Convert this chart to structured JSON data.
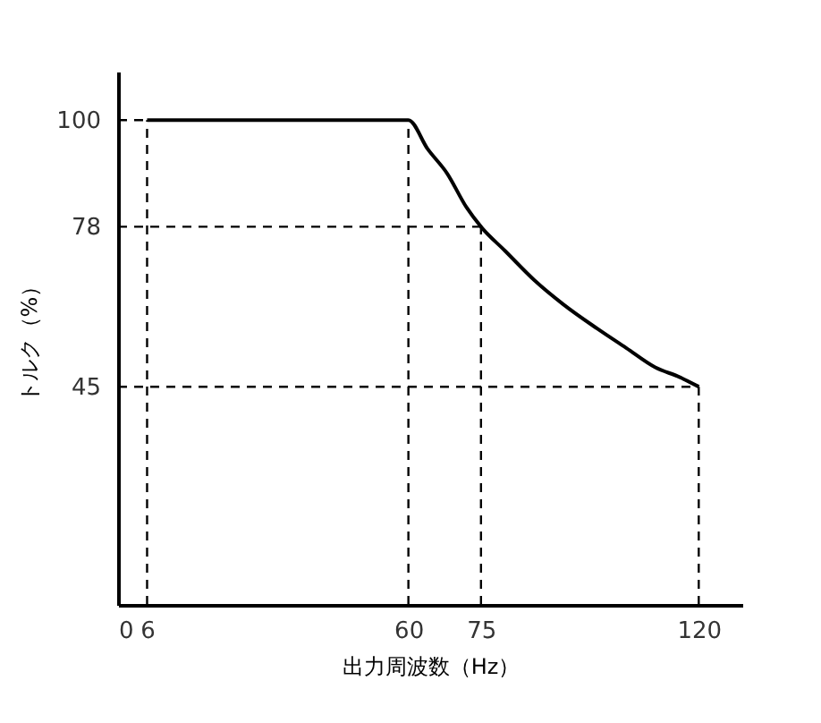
{
  "chart_data": {
    "type": "line",
    "xlabel": "出力周波数（Hz）",
    "ylabel": "トルク（%）",
    "x": [
      6,
      60,
      64,
      68,
      72,
      75,
      80,
      86,
      92,
      99,
      105,
      111,
      116,
      120
    ],
    "series": [
      {
        "color": "#000000",
        "values": [
          100,
          100,
          94,
          89,
          82,
          78,
          73,
          67,
          62,
          57,
          53,
          49,
          47,
          45
        ]
      }
    ],
    "xlim": [
      0,
      129
    ],
    "ylim": [
      0,
      110
    ],
    "xticks": [
      0,
      6,
      60,
      75,
      120
    ],
    "yticks": [
      45,
      78,
      100
    ],
    "grid": false,
    "marker": "none",
    "line_style": "solid",
    "ref_lines": [
      {
        "axis": "x",
        "value": 6,
        "color": "#000000",
        "line_style": "dashed"
      },
      {
        "axis": "x",
        "value": 60,
        "color": "#000000",
        "line_style": "dashed"
      },
      {
        "axis": "x",
        "value": 75,
        "color": "#000000",
        "line_style": "dashed"
      },
      {
        "axis": "x",
        "value": 120,
        "color": "#000000",
        "line_style": "dashed"
      },
      {
        "axis": "y",
        "value": 100,
        "color": "#000000",
        "line_style": "dashed"
      },
      {
        "axis": "y",
        "value": 78,
        "color": "#000000",
        "line_style": "dashed"
      },
      {
        "axis": "y",
        "value": 45,
        "color": "#000000",
        "line_style": "dashed"
      }
    ]
  }
}
